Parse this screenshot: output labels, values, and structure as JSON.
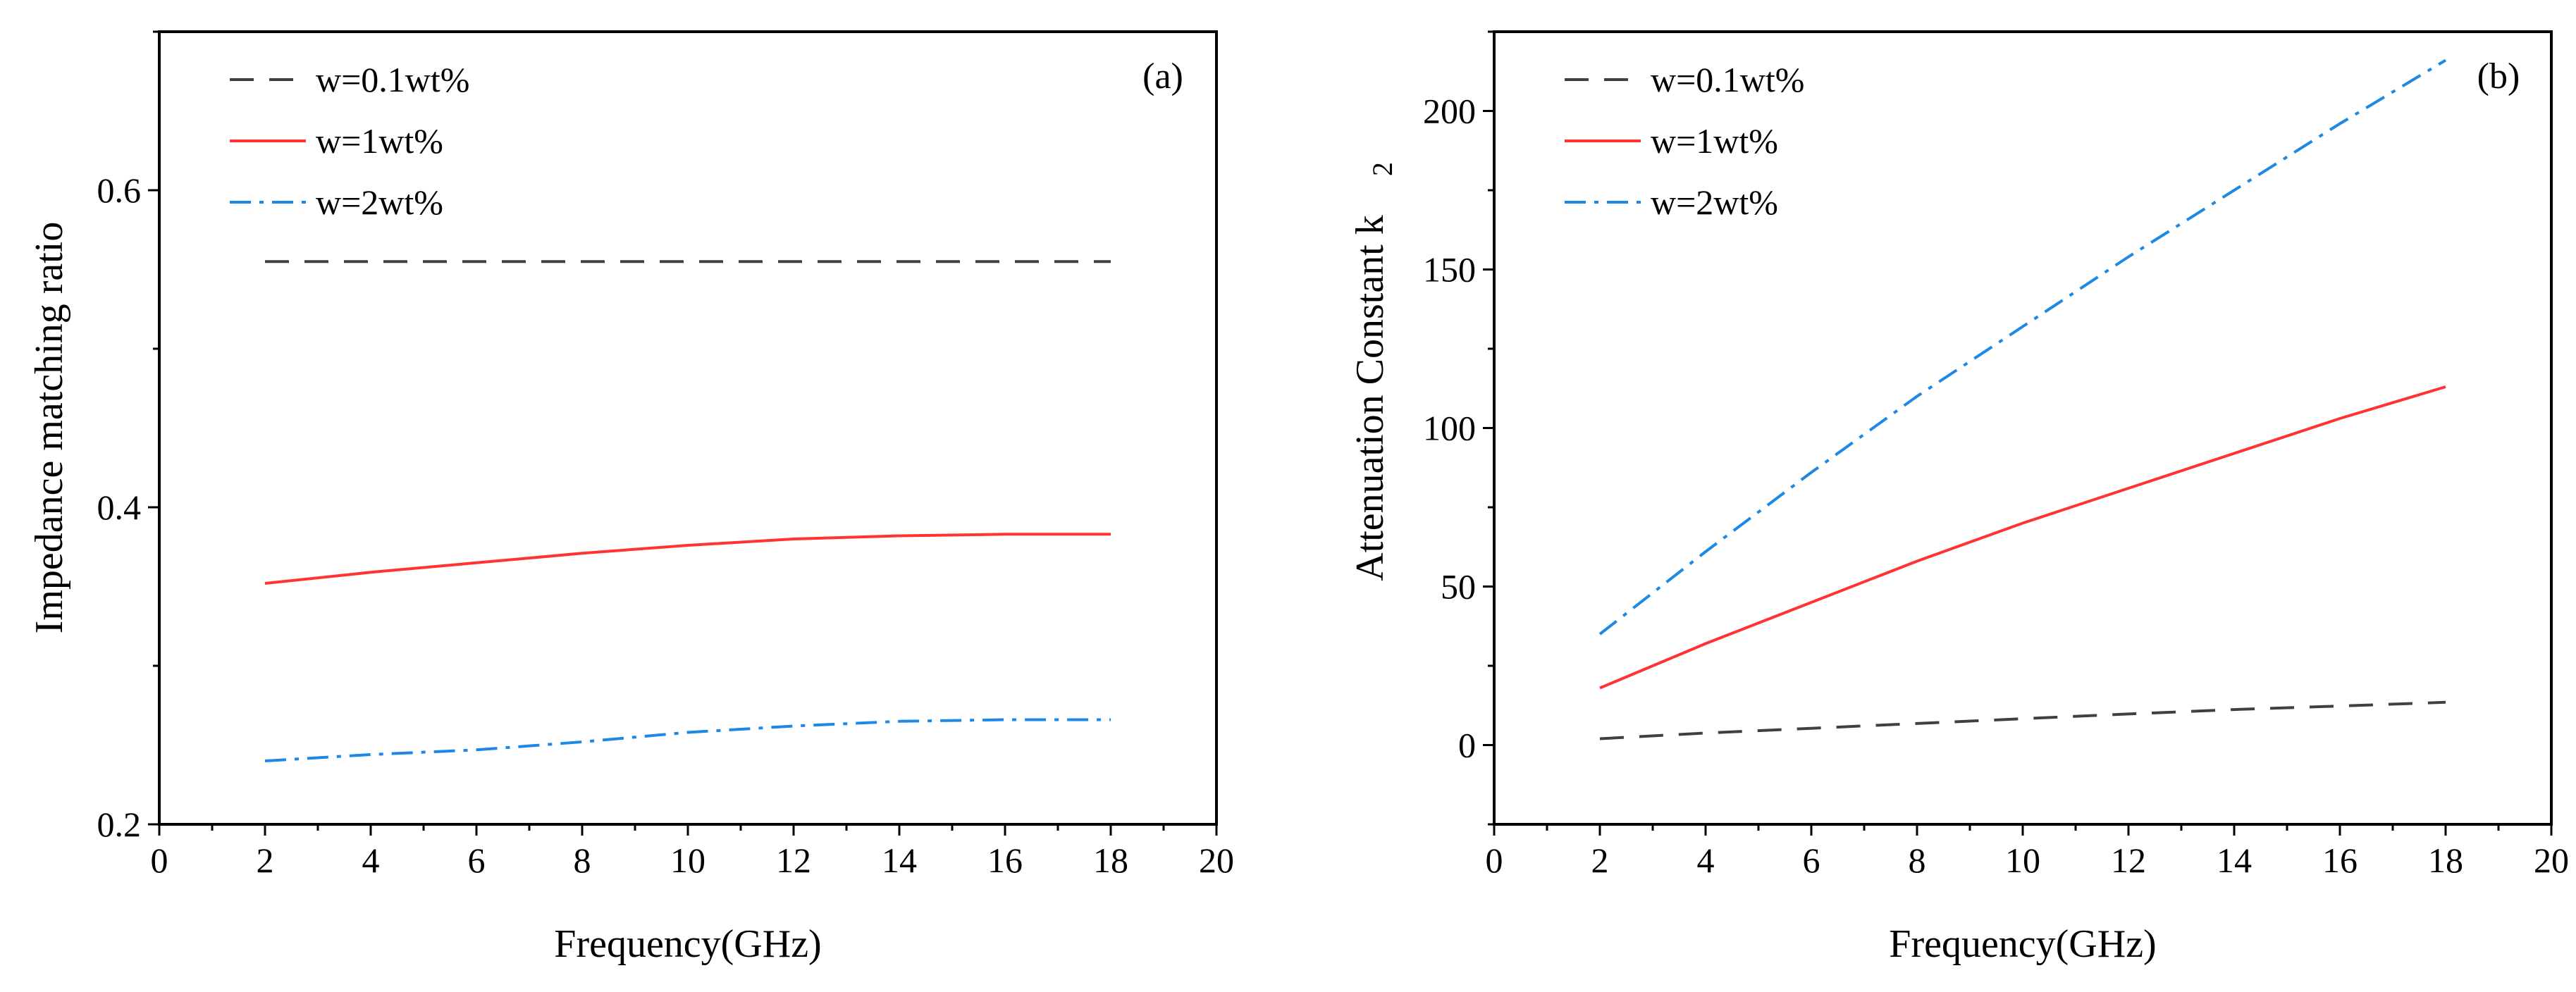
{
  "chart_data": [
    {
      "type": "line",
      "panel_label": "(a)",
      "xlabel": "Frequency(GHz)",
      "ylabel": "Impedance matching ratio",
      "xlim": [
        0,
        20
      ],
      "ylim": [
        0.2,
        0.7
      ],
      "x_major_ticks": [
        0,
        2,
        4,
        6,
        8,
        10,
        12,
        14,
        16,
        18,
        20
      ],
      "x_tick_labels": [
        "0",
        "2",
        "4",
        "6",
        "8",
        "10",
        "12",
        "14",
        "16",
        "18",
        "20"
      ],
      "y_major_ticks": [
        0.2,
        0.4,
        0.6
      ],
      "y_tick_labels": [
        "0.2",
        "0.4",
        "0.6"
      ],
      "legend_position": "top-left",
      "series": [
        {
          "name": "w=0.1wt%",
          "color": "#404040",
          "dash": "dashed",
          "x": [
            2,
            4,
            6,
            8,
            10,
            12,
            14,
            16,
            18
          ],
          "y": [
            0.555,
            0.555,
            0.555,
            0.555,
            0.555,
            0.555,
            0.555,
            0.555,
            0.555
          ]
        },
        {
          "name": "w=1wt%",
          "color": "#ff3333",
          "dash": "solid",
          "x": [
            2,
            4,
            6,
            8,
            10,
            12,
            14,
            16,
            18
          ],
          "y": [
            0.352,
            0.359,
            0.365,
            0.371,
            0.376,
            0.38,
            0.382,
            0.383,
            0.383
          ]
        },
        {
          "name": "w=2wt%",
          "color": "#1e88e5",
          "dash": "dashdot",
          "x": [
            2,
            4,
            6,
            8,
            10,
            12,
            14,
            16,
            18
          ],
          "y": [
            0.24,
            0.244,
            0.247,
            0.252,
            0.258,
            0.262,
            0.265,
            0.266,
            0.266
          ]
        }
      ]
    },
    {
      "type": "line",
      "panel_label": "(b)",
      "xlabel": "Frequency(GHz)",
      "ylabel": "Attenuation Constant k",
      "ylabel_subscript": "2",
      "xlim": [
        0,
        20
      ],
      "ylim": [
        -25,
        225
      ],
      "x_major_ticks": [
        0,
        2,
        4,
        6,
        8,
        10,
        12,
        14,
        16,
        18,
        20
      ],
      "x_tick_labels": [
        "0",
        "2",
        "4",
        "6",
        "8",
        "10",
        "12",
        "14",
        "16",
        "18",
        "20"
      ],
      "y_major_ticks": [
        0,
        50,
        100,
        150,
        200
      ],
      "y_tick_labels": [
        "0",
        "50",
        "100",
        "150",
        "200"
      ],
      "legend_position": "top-left",
      "series": [
        {
          "name": "w=0.1wt%",
          "color": "#404040",
          "dash": "dashed",
          "x": [
            2,
            4,
            6,
            8,
            10,
            12,
            14,
            16,
            18
          ],
          "y": [
            2,
            3.8,
            5.3,
            6.8,
            8.3,
            9.8,
            11.2,
            12.3,
            13.5
          ]
        },
        {
          "name": "w=1wt%",
          "color": "#ff3333",
          "dash": "solid",
          "x": [
            2,
            4,
            6,
            8,
            10,
            12,
            14,
            16,
            18
          ],
          "y": [
            18,
            32,
            45,
            58,
            70,
            81,
            92,
            103,
            113
          ]
        },
        {
          "name": "w=2wt%",
          "color": "#1e88e5",
          "dash": "dashdot",
          "x": [
            2,
            4,
            6,
            8,
            10,
            12,
            14,
            16,
            18
          ],
          "y": [
            35,
            61,
            86,
            110,
            132,
            154,
            175,
            196,
            216
          ]
        }
      ]
    }
  ]
}
